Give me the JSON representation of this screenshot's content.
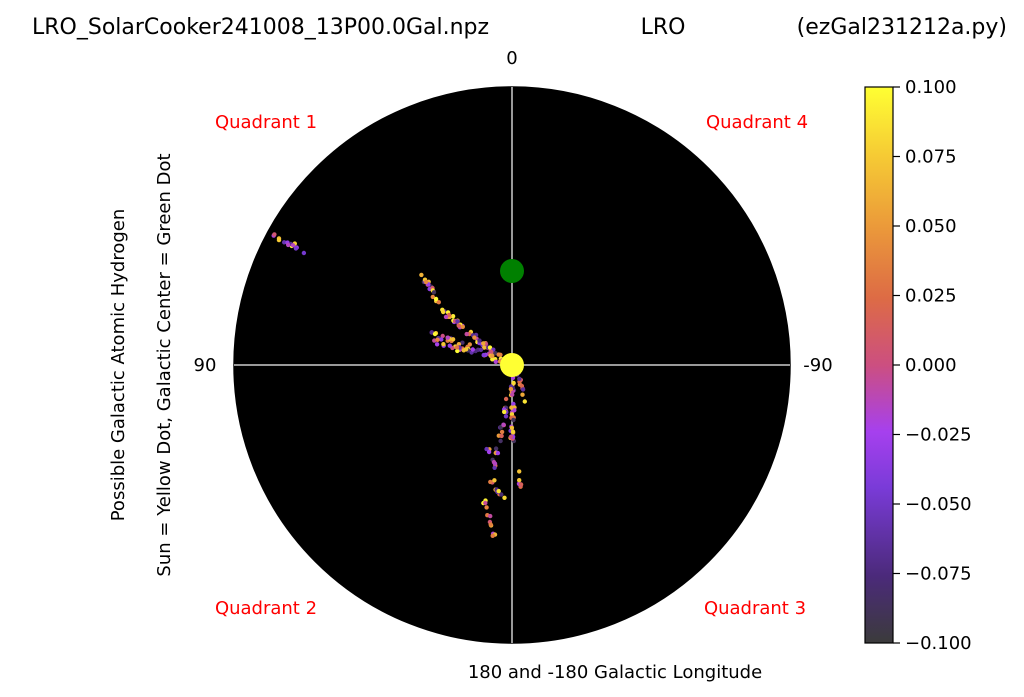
{
  "title": {
    "left": "LRO_SolarCooker241008_13P00.0Gal.npz",
    "center": "LRO",
    "right": "(ezGal231212a.py)"
  },
  "ylabel_lines": [
    "Possible Galactic Atomic Hydrogen",
    "Sun = Yellow Dot, Galactic Center = Green Dot"
  ],
  "xlabel": "180 and -180 Galactic Longitude",
  "axis_labels": {
    "top": "0",
    "left": "90",
    "right": "-90"
  },
  "quadrants": [
    {
      "label": "Quadrant 1",
      "position": "top-left"
    },
    {
      "label": "Quadrant 4",
      "position": "top-right"
    },
    {
      "label": "Quadrant 2",
      "position": "bottom-left"
    },
    {
      "label": "Quadrant 3",
      "position": "bottom-right"
    }
  ],
  "colors": {
    "background": "#000000",
    "crosshair": "#cccccc",
    "quadrant_text": "#ff0000",
    "sun": "#ffff33",
    "galactic_center": "#008000"
  },
  "colorbar": {
    "colormap": "gnuplot-like (dark purple → violet → orange → yellow)",
    "min": -0.1,
    "max": 0.1,
    "ticks": [
      "0.100",
      "0.075",
      "0.050",
      "0.025",
      "0.000",
      "−0.025",
      "−0.050",
      "−0.075",
      "−0.100"
    ]
  },
  "chart_data": {
    "type": "scatter",
    "projection": "polar galactic map (sun at center, longitude 0 up, 90 left, -90 right, 180/-180 down)",
    "markers": [
      {
        "name": "Sun",
        "color": "#ffff33"
      },
      {
        "name": "Galactic Center",
        "color": "#008000"
      }
    ],
    "clusters": [
      {
        "region": "Quadrant 1 outer edge",
        "approx_count": 14,
        "value_range": [
          -0.08,
          0.05
        ]
      },
      {
        "region": "Quadrant 1 upper arm toward center",
        "approx_count": 70,
        "value_range": [
          -0.09,
          0.1
        ]
      },
      {
        "region": "Quadrant 1 lower arm toward center",
        "approx_count": 55,
        "value_range": [
          -0.09,
          0.1
        ]
      },
      {
        "region": "Below center (Quadrants 2/3)",
        "approx_count": 110,
        "value_range": [
          -0.09,
          0.1
        ]
      }
    ],
    "value_range": [
      -0.1,
      0.1
    ]
  }
}
